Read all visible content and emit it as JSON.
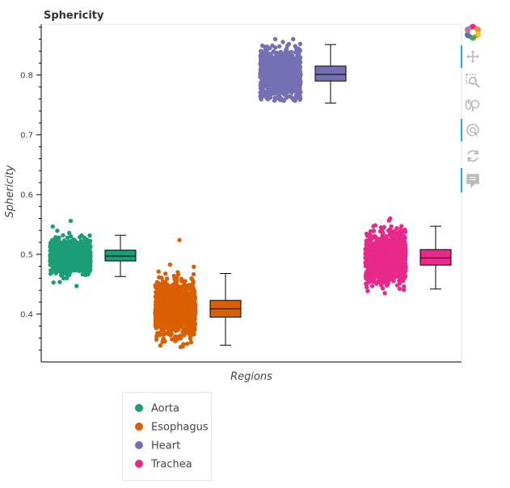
{
  "chart_data": {
    "type": "box",
    "title": "Sphericity",
    "xlabel": "Regions",
    "ylabel": "Sphericity",
    "ylim": [
      0.32,
      0.885
    ],
    "yticks": [
      0.4,
      0.5,
      0.6,
      0.7,
      0.8
    ],
    "ytick_labels": [
      "0.4",
      "0.5",
      "0.6",
      "0.7",
      "0.8"
    ],
    "x_tick_labels_shown": false,
    "grid": false,
    "legend_position": "bottom-left, outside plot",
    "series": [
      {
        "name": "Aorta",
        "color": "#1b9e77",
        "box": {
          "whisker_low": 0.463,
          "q1": 0.489,
          "median": 0.497,
          "q3": 0.507,
          "whisker_high": 0.532
        },
        "points": {
          "count": 1200,
          "center": 0.497,
          "spread": 0.013,
          "min": 0.447,
          "max": 0.556
        }
      },
      {
        "name": "Esophagus",
        "color": "#d95f02",
        "box": {
          "whisker_low": 0.348,
          "q1": 0.395,
          "median": 0.409,
          "q3": 0.423,
          "whisker_high": 0.468
        },
        "points": {
          "count": 1200,
          "center": 0.409,
          "spread": 0.021,
          "min": 0.345,
          "max": 0.524
        }
      },
      {
        "name": "Heart",
        "color": "#7570b3",
        "box": {
          "whisker_low": 0.753,
          "q1": 0.79,
          "median": 0.801,
          "q3": 0.815,
          "whisker_high": 0.851
        },
        "points": {
          "count": 1200,
          "center": 0.802,
          "spread": 0.019,
          "min": 0.757,
          "max": 0.86
        }
      },
      {
        "name": "Trachea",
        "color": "#e7298a",
        "box": {
          "whisker_low": 0.442,
          "q1": 0.482,
          "median": 0.494,
          "q3": 0.508,
          "whisker_high": 0.547
        },
        "points": {
          "count": 1200,
          "center": 0.494,
          "spread": 0.019,
          "min": 0.435,
          "max": 0.56
        }
      }
    ]
  },
  "toolbar": {
    "tools": [
      {
        "name": "bokeh-logo-icon",
        "active": false
      },
      {
        "name": "pan-icon",
        "active": true
      },
      {
        "name": "box-zoom-icon",
        "active": false
      },
      {
        "name": "wheel-zoom-icon",
        "active": false
      },
      {
        "name": "tap-icon",
        "active": true
      },
      {
        "name": "reset-icon",
        "active": false
      },
      {
        "name": "hover-icon",
        "active": true
      }
    ]
  },
  "colors": {
    "axis": "#000000",
    "box_stroke": "#000000",
    "toolbar_active": "#26aae1",
    "toolbar_icon": "#bbbbbb"
  }
}
